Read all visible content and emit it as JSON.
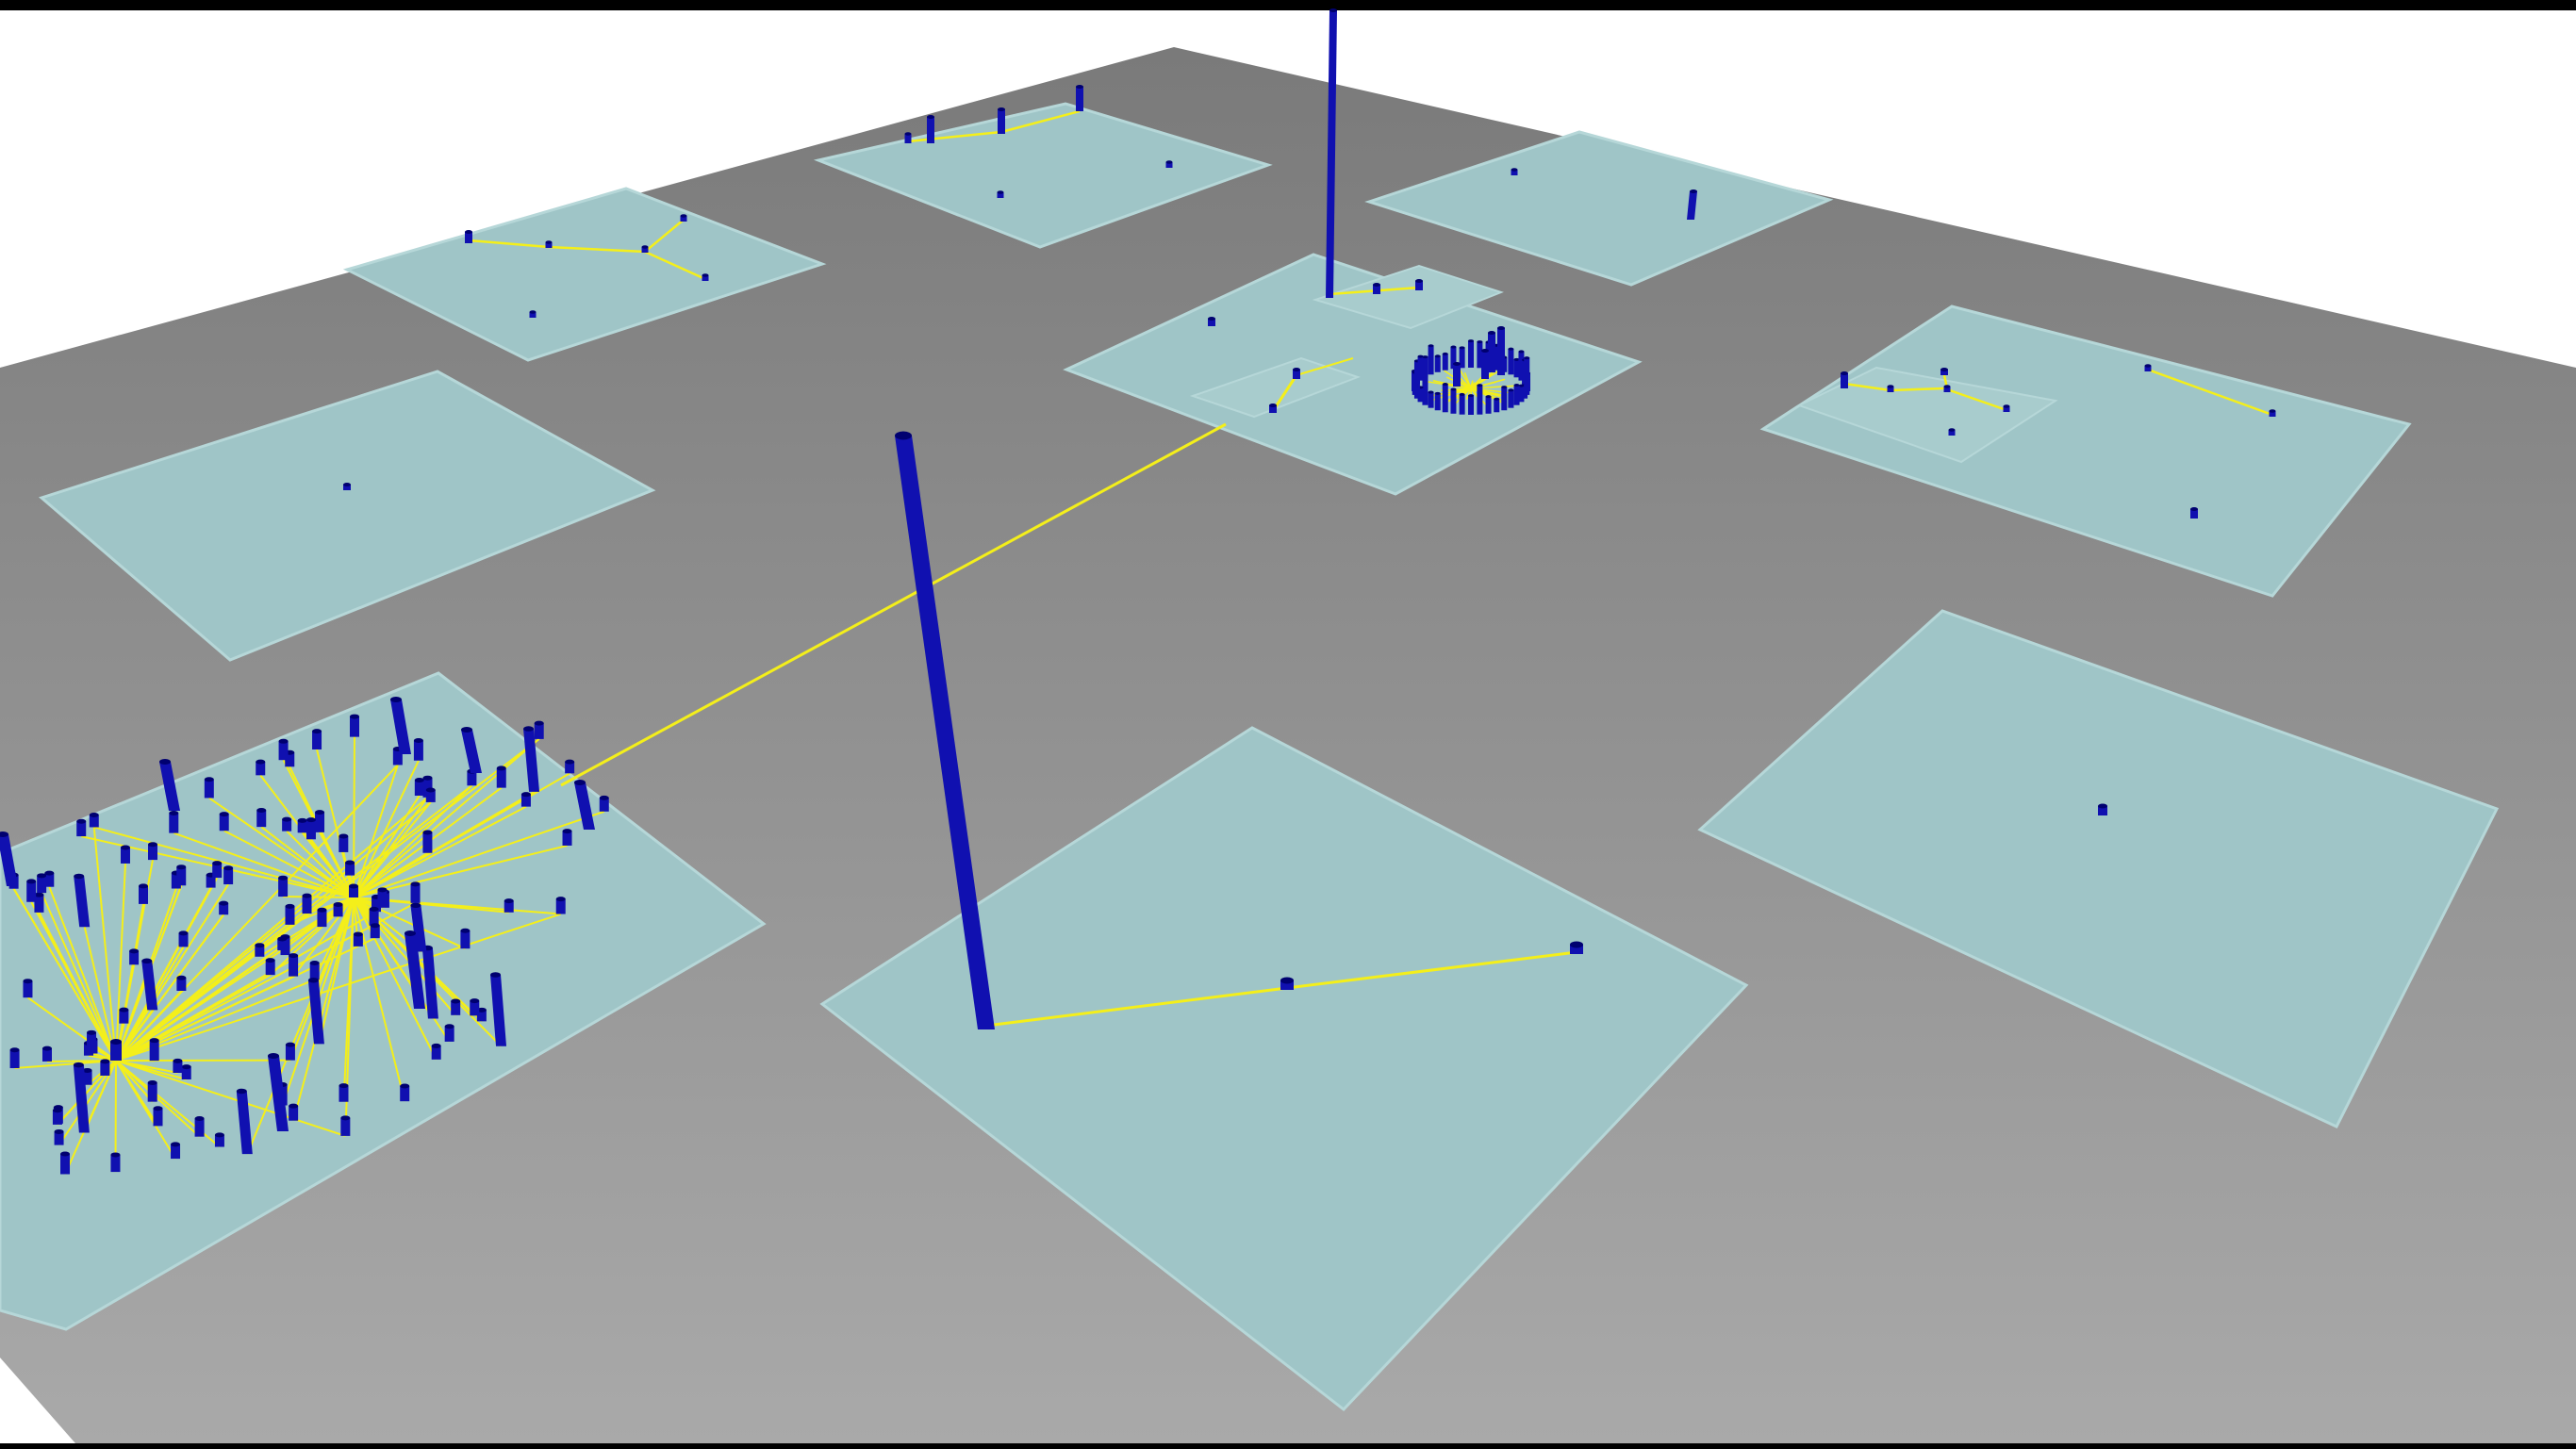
{
  "scene": {
    "view": "3d-city-visualization",
    "colors": {
      "background": "#ffffff",
      "frame_bar": "#000000",
      "ground_light": "#a7a7a7",
      "ground_dark": "#848484",
      "district": "#9fc5c7",
      "district_edge": "#b6d7d8",
      "building": "#1010b0",
      "building_dark": "#000070",
      "connection": "#f4ef1a"
    },
    "icons": [
      "building-icon",
      "connection-line-icon"
    ]
  }
}
